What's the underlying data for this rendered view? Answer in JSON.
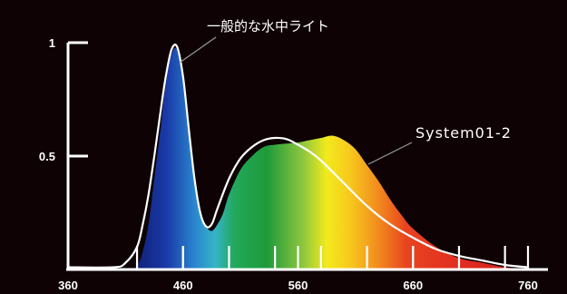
{
  "chart_data": {
    "type": "line",
    "title": "",
    "xlabel": "",
    "ylabel": "",
    "xlim": [
      360,
      760
    ],
    "ylim": [
      0,
      1
    ],
    "xticks": [
      360,
      460,
      560,
      660,
      760
    ],
    "yticks": [
      {
        "value": 1,
        "label": "1"
      },
      {
        "value": 0.5,
        "label": "0.5"
      }
    ],
    "grid": false,
    "series": [
      {
        "name": "一般的な水中ライト",
        "style": "white-outline",
        "color": "#ffffff",
        "x": [
          360,
          400,
          410,
          420,
          425,
          430,
          435,
          440,
          445,
          450,
          455,
          460,
          465,
          470,
          475,
          480,
          485,
          490,
          500,
          510,
          520,
          530,
          540,
          550,
          560,
          570,
          580,
          600,
          620,
          640,
          660,
          680,
          700,
          720,
          740,
          760
        ],
        "values": [
          0.01,
          0.01,
          0.03,
          0.1,
          0.2,
          0.33,
          0.5,
          0.68,
          0.85,
          0.97,
          0.98,
          0.85,
          0.62,
          0.4,
          0.25,
          0.19,
          0.2,
          0.27,
          0.4,
          0.49,
          0.54,
          0.57,
          0.58,
          0.575,
          0.55,
          0.52,
          0.48,
          0.38,
          0.28,
          0.2,
          0.14,
          0.09,
          0.06,
          0.04,
          0.02,
          0.01
        ]
      },
      {
        "name": "System01-2",
        "style": "spectrum-fill",
        "x": [
          360,
          410,
          420,
          425,
          430,
          435,
          440,
          445,
          450,
          455,
          460,
          465,
          470,
          475,
          480,
          485,
          490,
          495,
          500,
          510,
          520,
          530,
          540,
          550,
          560,
          570,
          580,
          590,
          600,
          610,
          620,
          630,
          640,
          650,
          660,
          680,
          700,
          720,
          740,
          760
        ],
        "values": [
          0,
          0,
          0.02,
          0.08,
          0.2,
          0.4,
          0.6,
          0.82,
          0.95,
          0.97,
          0.86,
          0.6,
          0.38,
          0.25,
          0.19,
          0.17,
          0.2,
          0.25,
          0.33,
          0.44,
          0.5,
          0.54,
          0.55,
          0.555,
          0.56,
          0.57,
          0.58,
          0.59,
          0.57,
          0.53,
          0.46,
          0.39,
          0.31,
          0.24,
          0.18,
          0.1,
          0.05,
          0.03,
          0.01,
          0
        ]
      }
    ],
    "annotations": [
      {
        "text": "一般的な水中ライト",
        "target": "一般的な水中ライト"
      },
      {
        "text": "System01-2",
        "target": "System01-2"
      }
    ]
  }
}
